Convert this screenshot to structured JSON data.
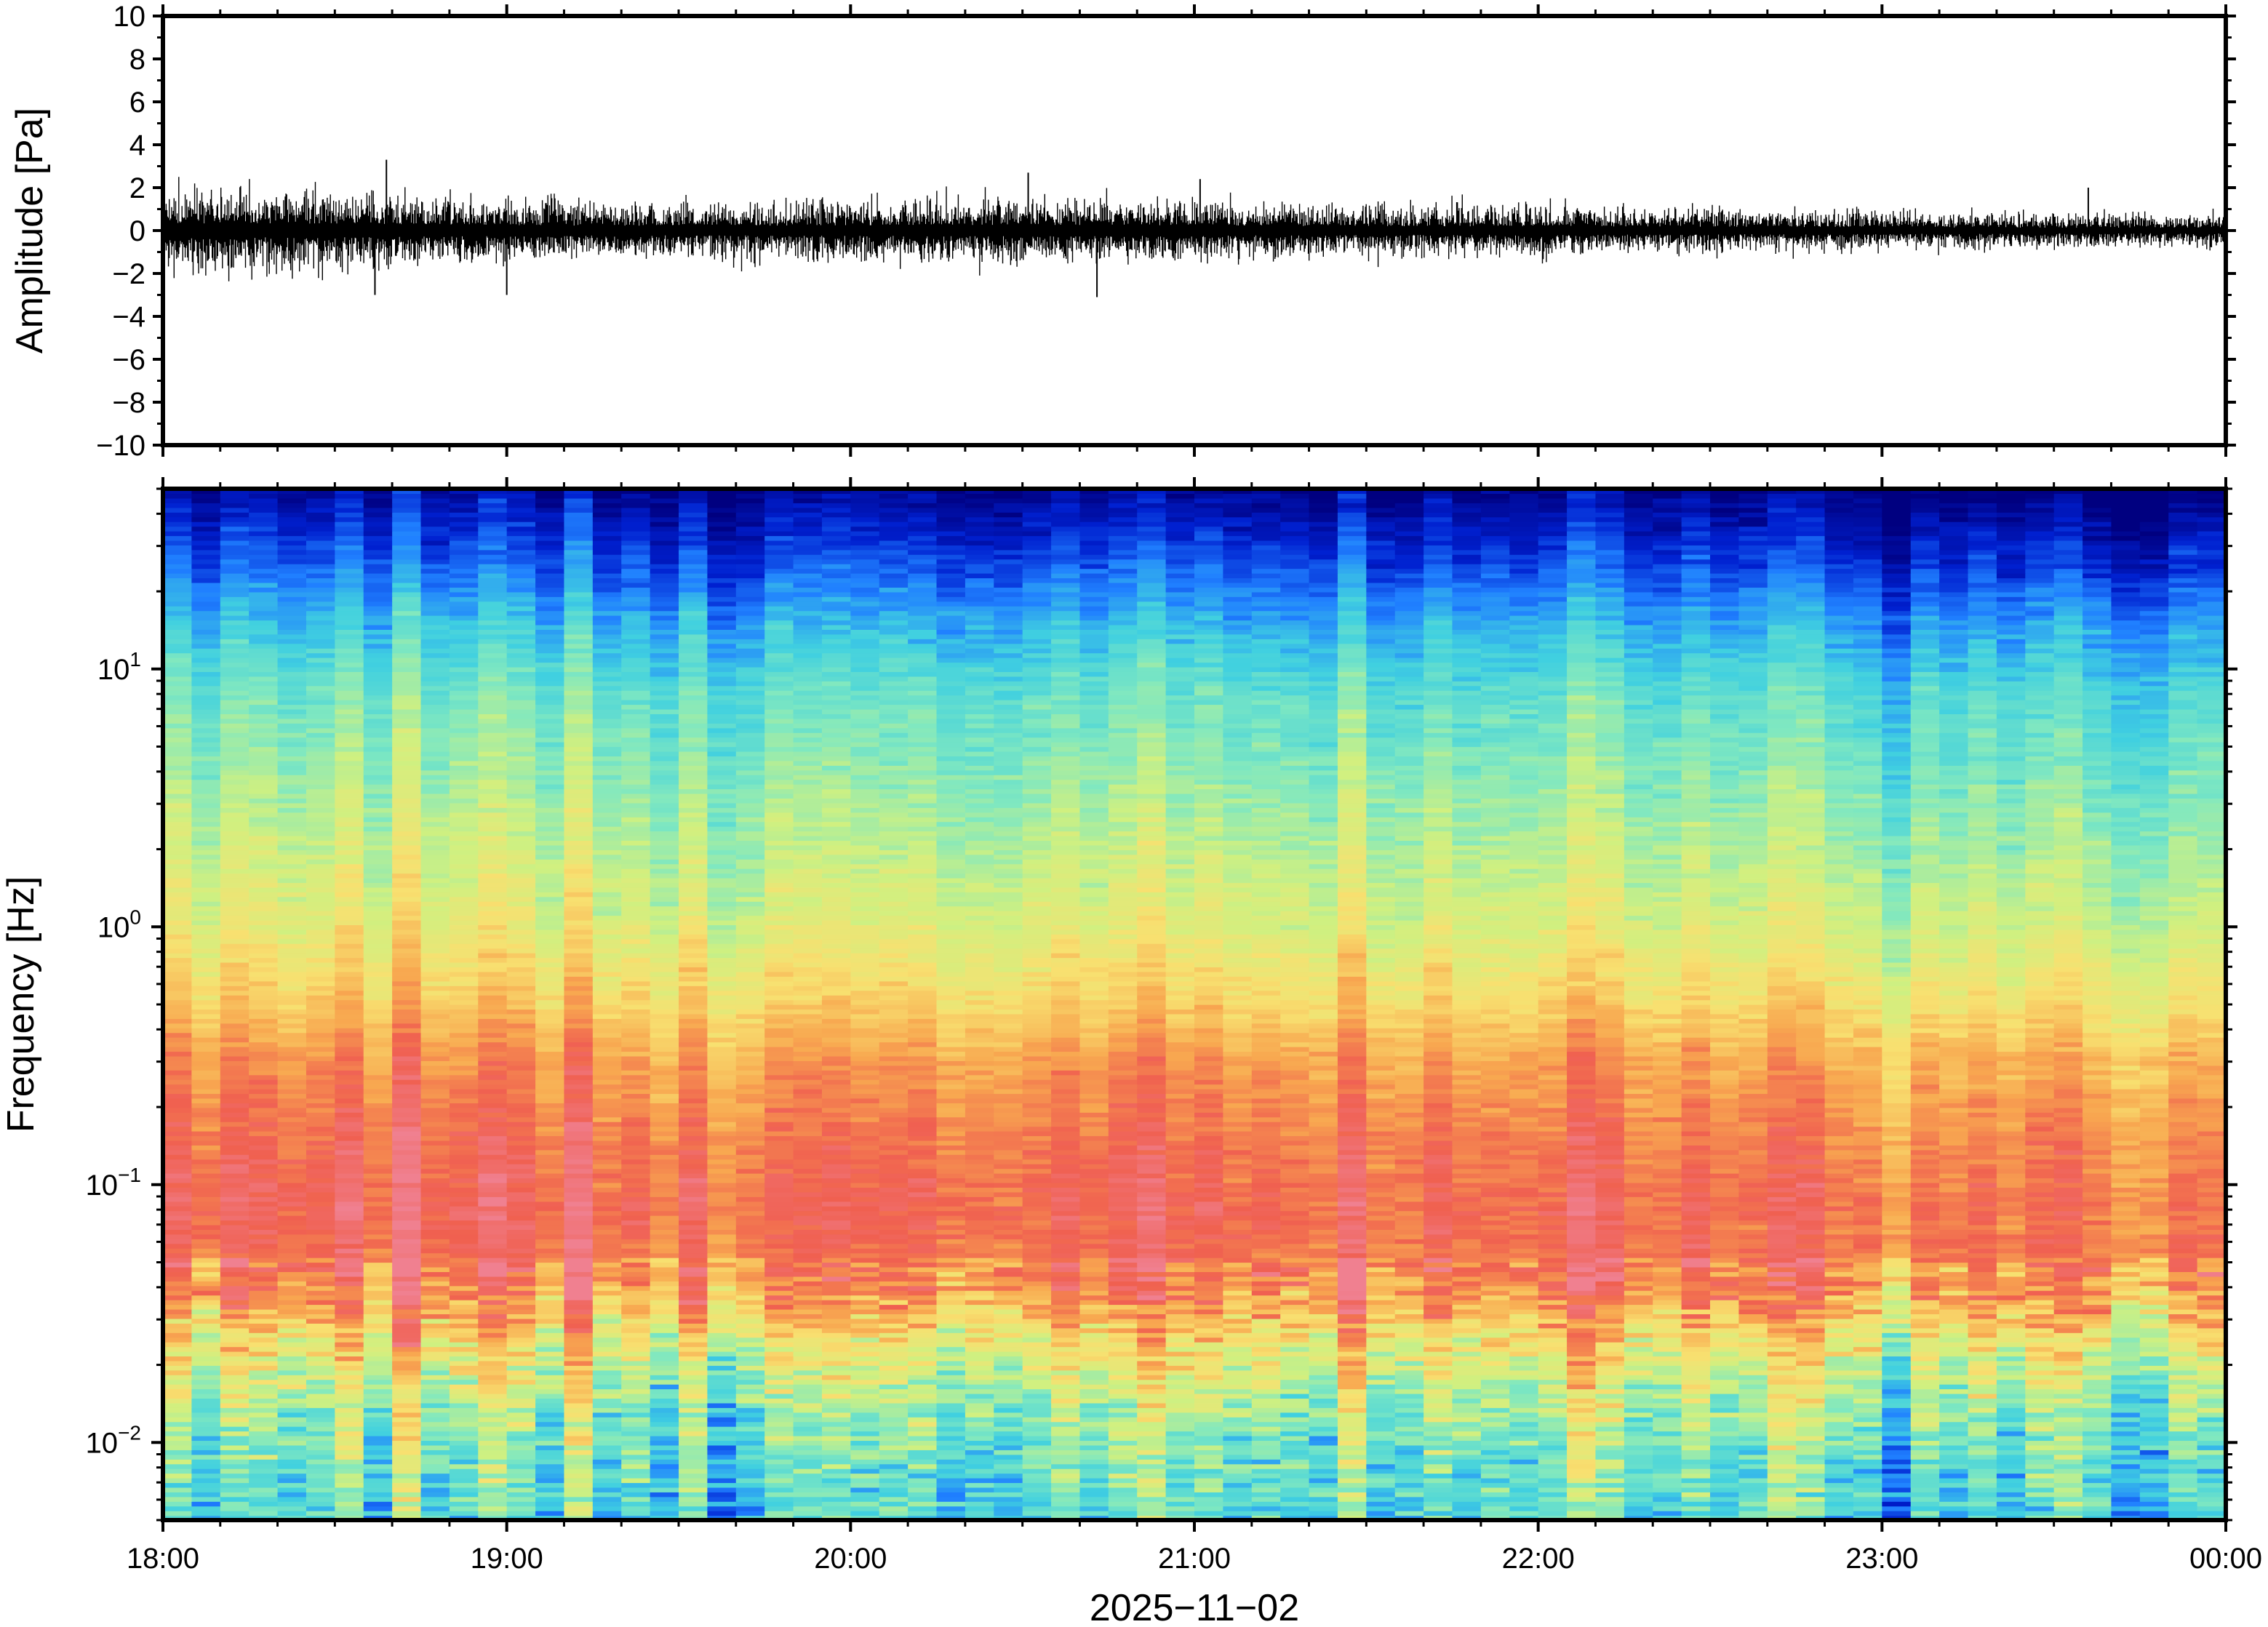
{
  "chart_data": [
    {
      "type": "line",
      "name": "waveform",
      "ylabel": "Amplitude [Pa]",
      "ylim": [
        -10,
        10
      ],
      "yticks": [
        "10",
        "8",
        "6",
        "4",
        "2",
        "0",
        "−2",
        "−4",
        "−6",
        "−8",
        "−10"
      ],
      "ytick_values": [
        10,
        8,
        6,
        4,
        2,
        0,
        -2,
        -4,
        -6,
        -8,
        -10
      ],
      "x_range": [
        "2025-11-02T18:00",
        "2025-11-03T00:00"
      ],
      "grid": false,
      "envelope": {
        "time": [
          "18:00",
          "18:30",
          "19:00",
          "19:30",
          "20:00",
          "20:30",
          "21:00",
          "21:30",
          "22:00",
          "22:30",
          "23:00",
          "23:30",
          "00:00"
        ],
        "typical_peak_pa": [
          1.5,
          1.4,
          1.1,
          1.0,
          1.1,
          1.2,
          1.1,
          0.9,
          0.9,
          0.8,
          0.7,
          0.6,
          0.6
        ],
        "max_spikes_pa": [
          {
            "time": "18:39",
            "value": 3.3
          },
          {
            "time": "18:37",
            "value": -3.0
          },
          {
            "time": "19:00",
            "value": -3.0
          },
          {
            "time": "20:31",
            "value": 2.7
          },
          {
            "time": "20:43",
            "value": -3.1
          },
          {
            "time": "21:01",
            "value": 2.4
          },
          {
            "time": "23:36",
            "value": 2.0
          }
        ]
      }
    },
    {
      "type": "heatmap",
      "name": "spectrogram",
      "ylabel": "Frequency [Hz]",
      "yscale": "log",
      "ylim": [
        0.005,
        50
      ],
      "yticks": [
        {
          "base": "10",
          "exp": "1",
          "value": 10
        },
        {
          "base": "10",
          "exp": "0",
          "value": 1
        },
        {
          "base": "10",
          "exp": "−1",
          "value": 0.1
        },
        {
          "base": "10",
          "exp": "−2",
          "value": 0.01
        }
      ],
      "xlabel": "2025−11−02",
      "xticks": [
        "18:00",
        "19:00",
        "20:00",
        "21:00",
        "22:00",
        "23:00",
        "00:00"
      ],
      "x_range": [
        "2025-11-02T18:00",
        "2025-11-03T00:00"
      ],
      "colormap": "jet-like (dark blue → cyan → yellow → red → pink)",
      "colormap_stops": [
        "#000080",
        "#0020d0",
        "#2080ff",
        "#40d0e0",
        "#80e8c0",
        "#d0f080",
        "#f8e070",
        "#f8a850",
        "#f06050",
        "#f08090"
      ],
      "intensity_profile": {
        "freq_hz": [
          50,
          30,
          15,
          8,
          3,
          1,
          0.5,
          0.3,
          0.15,
          0.08,
          0.04,
          0.025,
          0.015,
          0.008,
          0.005
        ],
        "relative_level": [
          0.05,
          0.16,
          0.32,
          0.43,
          0.52,
          0.62,
          0.72,
          0.82,
          0.88,
          0.92,
          0.84,
          0.66,
          0.52,
          0.42,
          0.38
        ]
      },
      "column_count": 72,
      "row_count": 220,
      "grid": false,
      "legend": "none"
    }
  ]
}
